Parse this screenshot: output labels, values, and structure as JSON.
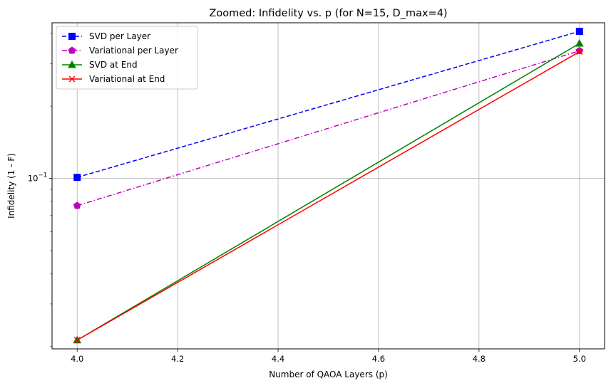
{
  "chart_data": {
    "type": "line",
    "title": "Zoomed: Infidelity vs. p (for N=15, D_max=4)",
    "xlabel": "Number of QAOA Layers (p)",
    "ylabel": "Infidelity (1 - F)",
    "xlim": [
      3.95,
      5.05
    ],
    "ylim": [
      0.0195,
      0.445
    ],
    "yscale": "log",
    "grid": true,
    "legend_position": "top-left",
    "x_ticks": [
      4.0,
      4.2,
      4.4,
      4.6,
      4.8,
      5.0
    ],
    "x_tick_labels": [
      "4.0",
      "4.2",
      "4.4",
      "4.6",
      "4.8",
      "5.0"
    ],
    "y_major_ticks": [
      0.1
    ],
    "y_major_tick_labels": [
      "10^-1"
    ],
    "y_minor_ticks": [
      0.02,
      0.03,
      0.04,
      0.05,
      0.06,
      0.07,
      0.08,
      0.09,
      0.2,
      0.3,
      0.4
    ],
    "series": [
      {
        "name": "SVD per Layer",
        "x": [
          4,
          5
        ],
        "values": [
          0.101,
          0.41
        ],
        "color": "#0000ff",
        "dash": "dashed",
        "marker": "square"
      },
      {
        "name": "Variational per Layer",
        "x": [
          4,
          5
        ],
        "values": [
          0.077,
          0.34
        ],
        "color": "#bf00bf",
        "dash": "dashdot",
        "marker": "pentagon"
      },
      {
        "name": "SVD at End",
        "x": [
          4,
          5
        ],
        "values": [
          0.0212,
          0.365
        ],
        "color": "#008000",
        "dash": "solid",
        "marker": "triangle"
      },
      {
        "name": "Variational at End",
        "x": [
          4,
          5
        ],
        "values": [
          0.0212,
          0.337
        ],
        "color": "#ff0000",
        "dash": "solid",
        "marker": "x"
      }
    ]
  }
}
